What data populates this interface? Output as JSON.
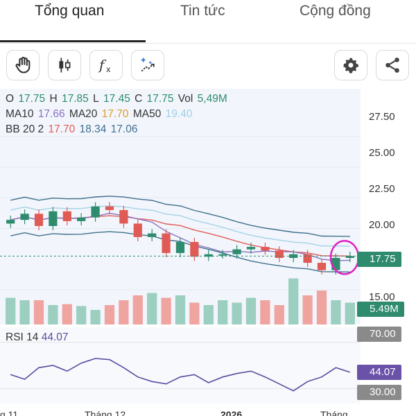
{
  "tabs": [
    {
      "label": "Tổng quan"
    },
    {
      "label": "Tin tức"
    },
    {
      "label": "Cộng đồng"
    }
  ],
  "toolbar": {
    "icons": [
      "hand-icon",
      "candlestick-icon",
      "function-icon",
      "magic-wand-icon",
      "gear-icon",
      "share-icon"
    ]
  },
  "ohlc": {
    "o_label": "O",
    "o": "17.75",
    "h_label": "H",
    "h": "17.85",
    "l_label": "L",
    "l": "17.45",
    "c_label": "C",
    "c": "17.75",
    "vol_label": "Vol",
    "vol": "5,49M"
  },
  "ma": {
    "ma10_label": "MA10",
    "ma10": "17.66",
    "ma20_label": "MA20",
    "ma20": "17.70",
    "ma50_label": "MA50",
    "ma50": "19.40"
  },
  "bb": {
    "label": "BB 20 2",
    "mid": "17.70",
    "upper": "18.34",
    "lower": "17.06"
  },
  "price_axis": [
    "27.50",
    "25.00",
    "22.50",
    "20.00",
    "15.00"
  ],
  "price_tag": "17.75",
  "volume_tag": "5.49M",
  "rsi": {
    "title": "RSI 14",
    "value": "44.07",
    "upper": "70.00",
    "lower": "30.00"
  },
  "time_axis": [
    "g 11",
    "Tháng 12",
    "2026",
    "Tháng"
  ],
  "colors": {
    "up": "#2e8b6e",
    "down": "#e05b55",
    "ma10": "#8a6fc0",
    "ma20": "#e05b55",
    "ma50": "#a9d3e6",
    "bb": "#3f6f8c",
    "rsi_line": "#5b4aa0",
    "rsi_tag": "#6a52a8",
    "gray_tag": "#8a8a8a",
    "annotation": "#e020c0"
  },
  "chart_data": {
    "type": "candlestick",
    "price_ylim": [
      15,
      28
    ],
    "close": [
      20.7,
      21.2,
      20.2,
      21.4,
      20.6,
      20.9,
      21.8,
      21.5,
      20.4,
      19.3,
      19.6,
      18.0,
      18.9,
      17.7,
      17.9,
      17.9,
      18.3,
      18.5,
      18.2,
      17.6,
      17.9,
      17.2,
      16.6,
      17.6,
      17.75
    ],
    "volume_relative": [
      0.55,
      0.5,
      0.5,
      0.4,
      0.42,
      0.38,
      0.3,
      0.4,
      0.5,
      0.6,
      0.65,
      0.55,
      0.6,
      0.45,
      0.4,
      0.5,
      0.45,
      0.55,
      0.5,
      0.4,
      0.95,
      0.6,
      0.7,
      0.5,
      0.45
    ],
    "rsi_ylim": [
      20,
      80
    ],
    "rsi": [
      42,
      38,
      48,
      50,
      45,
      52,
      56,
      55,
      48,
      40,
      36,
      34,
      40,
      42,
      35,
      40,
      43,
      45,
      40,
      34,
      28,
      36,
      40,
      48,
      44.07
    ]
  }
}
